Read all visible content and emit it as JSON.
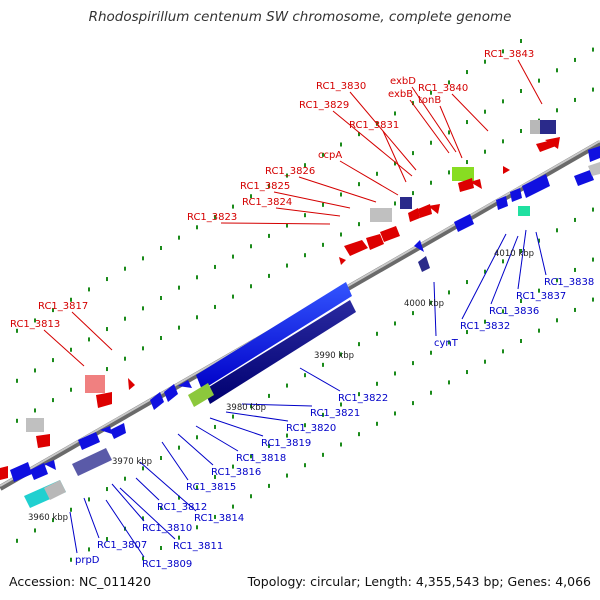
{
  "title": "Rhodospirillum centenum SW chromosome, complete genome",
  "footer": {
    "accession": "Accession: NC_011420",
    "summary": "Topology: circular; Length: 4,355,543 bp; Genes: 4,066"
  },
  "scale_labels": [
    "3960 kbp",
    "3970 kbp",
    "3980 kbp",
    "3990 kbp",
    "4000 kbp",
    "4010 kbp"
  ],
  "colors": {
    "forward_gene": "#d40000",
    "reverse_gene": "#0000c8",
    "backbone": "#888888",
    "tick": "#1a8a1a"
  },
  "forward_gene_labels": [
    "RC1_3843",
    "RC1_3840",
    "exbD",
    "exbB",
    "tonB",
    "RC1_3830",
    "RC1_3829",
    "RC1_3831",
    "ccpA",
    "RC1_3826",
    "RC1_3825",
    "RC1_3824",
    "RC1_3823",
    "RC1_3817",
    "RC1_3813"
  ],
  "reverse_gene_labels": [
    "RC1_3838",
    "RC1_3837",
    "RC1_3836",
    "RC1_3832",
    "cynT",
    "RC1_3822",
    "RC1_3821",
    "RC1_3820",
    "RC1_3819",
    "RC1_3818",
    "RC1_3816",
    "RC1_3815",
    "RC1_3814",
    "RC1_3812",
    "RC1_3810",
    "RC1_3811",
    "RC1_3807",
    "RC1_3809",
    "prpD"
  ]
}
